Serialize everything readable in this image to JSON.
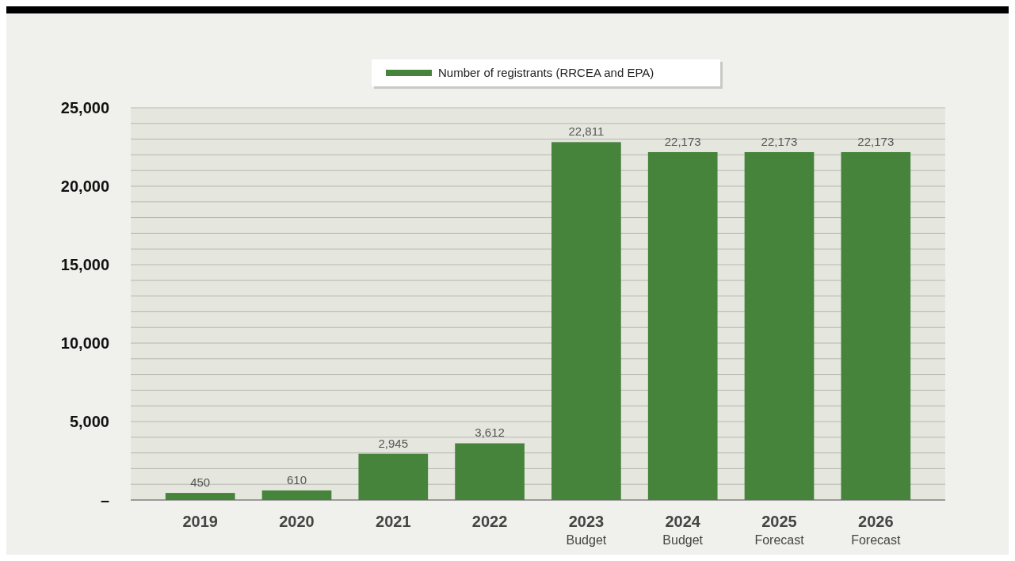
{
  "chart_data": {
    "type": "bar",
    "categories": [
      "2019",
      "2020",
      "2021",
      "2022",
      "2023\nBudget",
      "2024\nBudget",
      "2025\nForecast",
      "2026\nForecast"
    ],
    "series": [
      {
        "name": "Number of registrants (RRCEA and EPA)",
        "color": "#46843c",
        "values": [
          450,
          610,
          2945,
          3612,
          22811,
          22173,
          22173,
          22173
        ],
        "value_labels": [
          "450",
          "610",
          "2,945",
          "3,612",
          "22,811",
          "22,173",
          "22,173",
          "22,173"
        ]
      }
    ],
    "ylim": [
      0,
      25000
    ],
    "yticks": [
      {
        "value": 0,
        "label": "–"
      },
      {
        "value": 1000,
        "label": null
      },
      {
        "value": 2000,
        "label": null
      },
      {
        "value": 3000,
        "label": null
      },
      {
        "value": 4000,
        "label": null
      },
      {
        "value": 5000,
        "label": "5,000"
      },
      {
        "value": 6000,
        "label": null
      },
      {
        "value": 7000,
        "label": null
      },
      {
        "value": 8000,
        "label": null
      },
      {
        "value": 9000,
        "label": null
      },
      {
        "value": 10000,
        "label": "10,000"
      },
      {
        "value": 11000,
        "label": null
      },
      {
        "value": 12000,
        "label": null
      },
      {
        "value": 13000,
        "label": null
      },
      {
        "value": 14000,
        "label": null
      },
      {
        "value": 15000,
        "label": "15,000"
      },
      {
        "value": 16000,
        "label": null
      },
      {
        "value": 17000,
        "label": null
      },
      {
        "value": 18000,
        "label": null
      },
      {
        "value": 19000,
        "label": null
      },
      {
        "value": 20000,
        "label": "20,000"
      },
      {
        "value": 21000,
        "label": null
      },
      {
        "value": 22000,
        "label": null
      },
      {
        "value": 23000,
        "label": null
      },
      {
        "value": 24000,
        "label": null
      },
      {
        "value": 25000,
        "label": "25,000"
      }
    ],
    "grid": true,
    "legend": "top"
  }
}
